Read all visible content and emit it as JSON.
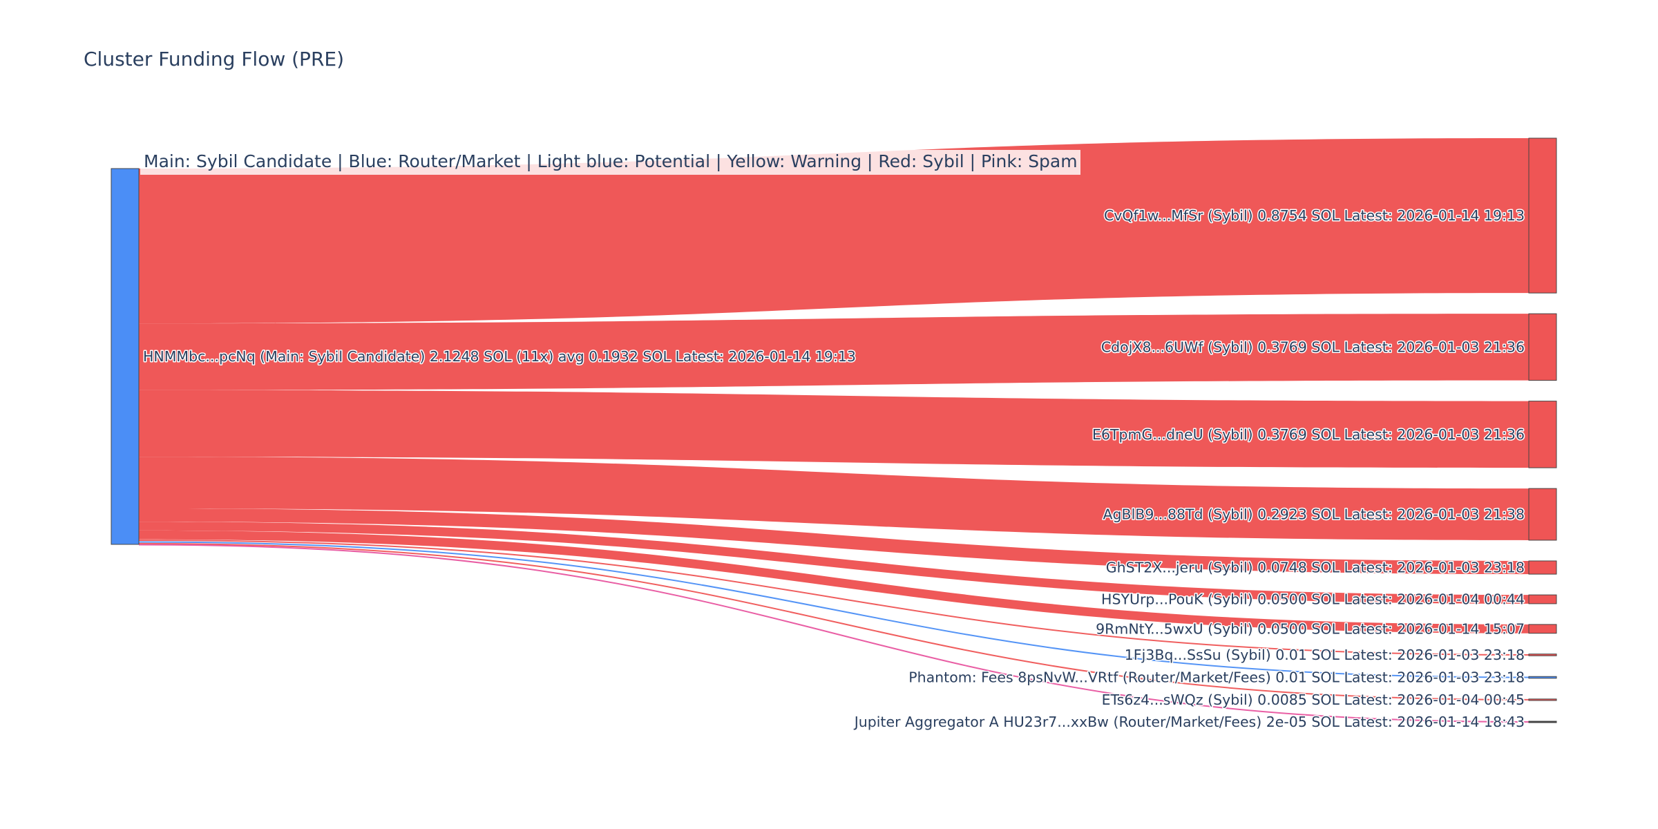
{
  "page": {
    "title": "Cluster Funding Flow (PRE)",
    "legend_note": "Main: Sybil Candidate  |  Blue: Router/Market | Light blue: Potential | Yellow: Warning | Red: Sybil | Pink: Spam"
  },
  "colors": {
    "source_node": "#4b8ef6",
    "sybil": "#ef5555",
    "router": "#4b8ef6",
    "spam": "#e8559f",
    "node_border": "#444444",
    "label": "#2a3f5f"
  },
  "chart_data": {
    "type": "sankey",
    "title": "Cluster Funding Flow (PRE)",
    "source": {
      "label": "HNMMbc...pcNq (Main: Sybil Candidate) 2.1248 SOL (11x) avg 0.1932 SOL Latest: 2026-01-14 19:13",
      "value": 2.1248,
      "color_key": "source_node"
    },
    "targets": [
      {
        "label": "CvQf1w...MfSr (Sybil) 0.8754 SOL Latest: 2026-01-14 19:13",
        "value": 0.8754,
        "color_key": "sybil"
      },
      {
        "label": "CdojX8...6UWf (Sybil) 0.3769 SOL Latest: 2026-01-03 21:36",
        "value": 0.3769,
        "color_key": "sybil"
      },
      {
        "label": "E6TpmG...dneU (Sybil) 0.3769 SOL Latest: 2026-01-03 21:36",
        "value": 0.3769,
        "color_key": "sybil"
      },
      {
        "label": "AgBlB9...88Td (Sybil) 0.2923 SOL Latest: 2026-01-03 21:38",
        "value": 0.2923,
        "color_key": "sybil"
      },
      {
        "label": "GhST2X...jeru (Sybil) 0.0748 SOL Latest: 2026-01-03 23:18",
        "value": 0.0748,
        "color_key": "sybil"
      },
      {
        "label": "HSYUrp...PouK (Sybil) 0.0500 SOL Latest: 2026-01-04 00:44",
        "value": 0.05,
        "color_key": "sybil"
      },
      {
        "label": "9RmNtY...5wxU (Sybil) 0.0500 SOL Latest: 2026-01-14 15:07",
        "value": 0.05,
        "color_key": "sybil"
      },
      {
        "label": "1Fj3Bq...SsSu (Sybil) 0.01 SOL Latest: 2026-01-03 23:18",
        "value": 0.01,
        "color_key": "sybil"
      },
      {
        "label": "Phantom: Fees 8psNvW...VRtf (Router/Market/Fees) 0.01 SOL Latest: 2026-01-03 23:18",
        "value": 0.01,
        "color_key": "router"
      },
      {
        "label": "ETs6z4...sWQz (Sybil) 0.0085 SOL Latest: 2026-01-04 00:45",
        "value": 0.0085,
        "color_key": "sybil"
      },
      {
        "label": "Jupiter Aggregator A HU23r7...xxBw (Router/Market/Fees) 2e-05 SOL Latest: 2026-01-14 18:43",
        "value": 2e-05,
        "color_key": "spam"
      }
    ]
  }
}
